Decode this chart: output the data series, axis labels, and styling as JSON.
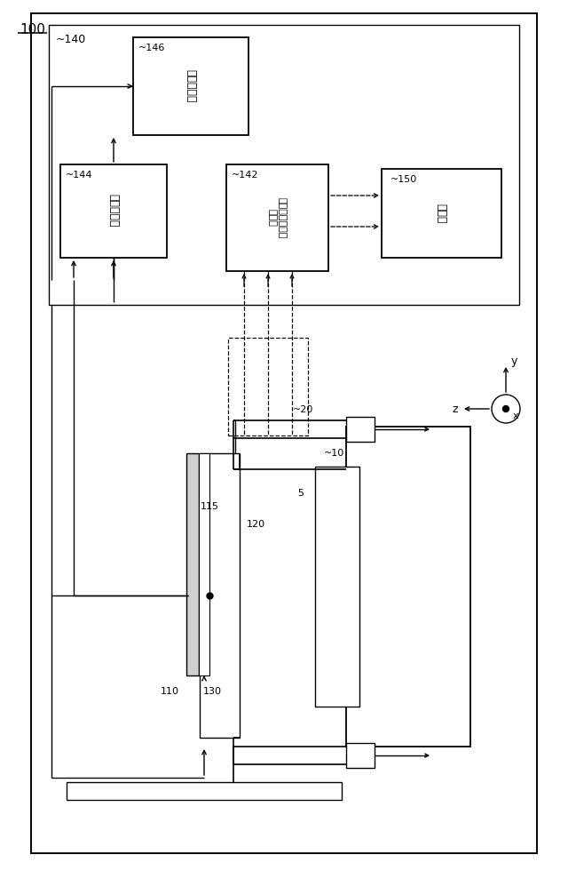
{
  "fig_width": 6.4,
  "fig_height": 9.98,
  "bg_color": "#ffffff",
  "labels": {
    "100": "100",
    "140": "~140",
    "146": "~146",
    "144": "~144",
    "142": "~142",
    "150": "~150",
    "20": "~20",
    "10": "~10",
    "5": "5",
    "120": "120",
    "115": "115",
    "110": "110",
    "130": "130"
  },
  "box_texts": {
    "146": "開口制御部",
    "144": "温度取得部",
    "142": "熱電モジュール\n制御部",
    "150": "蓄電池"
  },
  "axis_labels": {
    "x": "x",
    "y": "y",
    "z": "z"
  }
}
